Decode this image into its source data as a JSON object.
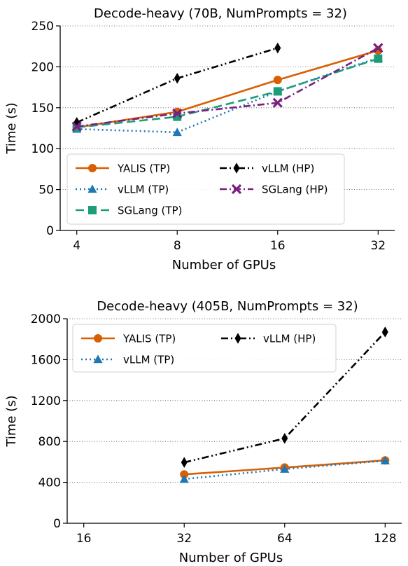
{
  "chart_data": [
    {
      "type": "line",
      "title": "Decode-heavy (70B, NumPrompts = 32)",
      "xlabel": "Number of GPUs",
      "ylabel": "Time (s)",
      "x_scale": "log2",
      "categories": [
        "4",
        "8",
        "16",
        "32"
      ],
      "x": [
        4,
        8,
        16,
        32
      ],
      "ylim": [
        0,
        250
      ],
      "yticks": [
        0,
        50,
        100,
        150,
        200,
        250
      ],
      "grid": "horizontal dotted",
      "legend_position": "lower-left",
      "series": [
        {
          "name": "YALIS (TP)",
          "x": [
            4,
            8,
            16,
            32
          ],
          "values": [
            126,
            145,
            184,
            220
          ],
          "color": "#d95f02",
          "marker": "circle",
          "dash": "solid"
        },
        {
          "name": "vLLM (TP)",
          "x": [
            4,
            8,
            16,
            32
          ],
          "values": [
            124,
            120,
            170,
            211
          ],
          "color": "#1f78b4",
          "marker": "triangle",
          "dash": "dotted"
        },
        {
          "name": "SGLang (TP)",
          "x": [
            4,
            8,
            16,
            32
          ],
          "values": [
            126,
            139,
            170,
            210
          ],
          "color": "#1b9e77",
          "marker": "square",
          "dash": "dashed"
        },
        {
          "name": "vLLM (HP)",
          "x": [
            4,
            8,
            16
          ],
          "values": [
            132,
            186,
            223
          ],
          "color": "#000000",
          "marker": "diamond",
          "dash": "dashdotdot"
        },
        {
          "name": "SGLang (HP)",
          "x": [
            4,
            8,
            16,
            32
          ],
          "values": [
            127,
            143,
            156,
            223
          ],
          "color": "#7b1f7f",
          "marker": "x",
          "dash": "dashdot"
        }
      ]
    },
    {
      "type": "line",
      "title": "Decode-heavy (405B, NumPrompts = 32)",
      "xlabel": "Number of GPUs",
      "ylabel": "Time (s)",
      "x_scale": "log2",
      "categories": [
        "16",
        "32",
        "64",
        "128"
      ],
      "x": [
        16,
        32,
        64,
        128
      ],
      "ylim": [
        0,
        2000
      ],
      "yticks": [
        0,
        400,
        800,
        1200,
        1600,
        2000
      ],
      "grid": "horizontal dotted",
      "legend_position": "upper-left",
      "series": [
        {
          "name": "YALIS (TP)",
          "x": [
            32,
            64,
            128
          ],
          "values": [
            478,
            545,
            615
          ],
          "color": "#d95f02",
          "marker": "circle",
          "dash": "solid"
        },
        {
          "name": "vLLM (TP)",
          "x": [
            32,
            64,
            128
          ],
          "values": [
            432,
            530,
            612
          ],
          "color": "#1f78b4",
          "marker": "triangle",
          "dash": "dotted"
        },
        {
          "name": "vLLM (HP)",
          "x": [
            32,
            64,
            128
          ],
          "values": [
            595,
            830,
            1870
          ],
          "color": "#000000",
          "marker": "diamond",
          "dash": "dashdotdot"
        }
      ]
    }
  ]
}
